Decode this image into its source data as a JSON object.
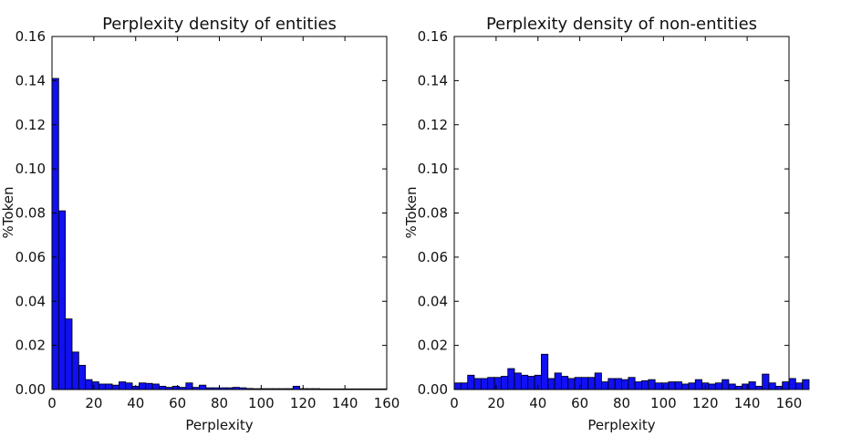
{
  "chart_data": [
    {
      "type": "bar",
      "title": "Perplexity density of entities",
      "xlabel": "Perplexity",
      "ylabel": "%Token",
      "xlim": [
        0,
        160
      ],
      "ylim": [
        0,
        0.16
      ],
      "xticks": [
        "0",
        "20",
        "40",
        "60",
        "80",
        "100",
        "120",
        "140",
        "160"
      ],
      "yticks": [
        "0.00",
        "0.02",
        "0.04",
        "0.06",
        "0.08",
        "0.10",
        "0.12",
        "0.14",
        "0.16"
      ],
      "bin_width": 3.2,
      "bar_color": "#1010f0",
      "values": [
        0.141,
        0.081,
        0.032,
        0.017,
        0.011,
        0.0045,
        0.0035,
        0.0025,
        0.0025,
        0.002,
        0.0035,
        0.003,
        0.0015,
        0.003,
        0.0028,
        0.0025,
        0.0015,
        0.001,
        0.0015,
        0.001,
        0.003,
        0.001,
        0.002,
        0.0008,
        0.0008,
        0.0008,
        0.0008,
        0.001,
        0.0008,
        0.0005,
        0.0004,
        0.0004,
        0.0004,
        0.0004,
        0.0004,
        0.0004,
        0.0015,
        0.0004,
        0.0004,
        0.0004,
        0.0003,
        0.0003,
        0.0003,
        0.0003,
        0.0003,
        0.0003,
        0.0003,
        0.0003,
        0.0003,
        0.0003
      ]
    },
    {
      "type": "bar",
      "title": "Perplexity density of non-entities",
      "xlabel": "Perplexity",
      "ylabel": "%Token",
      "xlim": [
        0,
        160
      ],
      "ylim": [
        0,
        0.16
      ],
      "xticks": [
        "0",
        "20",
        "40",
        "60",
        "80",
        "100",
        "120",
        "140",
        "160"
      ],
      "yticks": [
        "0.00",
        "0.02",
        "0.04",
        "0.06",
        "0.08",
        "0.10",
        "0.12",
        "0.14",
        "0.16"
      ],
      "bin_width": 3.2,
      "bar_color": "#1010f0",
      "values": [
        0.003,
        0.003,
        0.0065,
        0.005,
        0.005,
        0.0055,
        0.0055,
        0.006,
        0.0095,
        0.0075,
        0.0065,
        0.006,
        0.0065,
        0.016,
        0.005,
        0.0075,
        0.006,
        0.005,
        0.0055,
        0.0055,
        0.0055,
        0.0075,
        0.0035,
        0.005,
        0.005,
        0.0045,
        0.0055,
        0.0035,
        0.004,
        0.0045,
        0.003,
        0.003,
        0.0035,
        0.0035,
        0.0025,
        0.003,
        0.0045,
        0.003,
        0.0025,
        0.003,
        0.0045,
        0.0025,
        0.0015,
        0.0025,
        0.0035,
        0.0015,
        0.007,
        0.003,
        0.0015,
        0.0035,
        0.005,
        0.003,
        0.0045
      ]
    }
  ]
}
